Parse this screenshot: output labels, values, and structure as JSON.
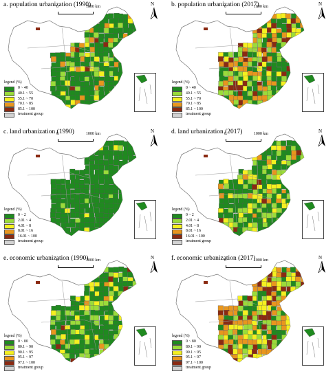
{
  "panels": [
    {
      "title": "a. population urbanization (1990)",
      "legend_key": "pop",
      "colors": {
        "dark": 0.68,
        "light": 0.1,
        "yellow": 0.08,
        "orange": 0.1,
        "brown": 0.04
      }
    },
    {
      "title": "b. population urbanization (2017)",
      "legend_key": "pop",
      "colors": {
        "dark": 0.3,
        "light": 0.18,
        "yellow": 0.14,
        "orange": 0.24,
        "brown": 0.14
      }
    },
    {
      "title": "c. land urbanization (1990)",
      "legend_key": "land",
      "colors": {
        "dark": 0.95,
        "light": 0.03,
        "yellow": 0.02,
        "orange": 0,
        "brown": 0
      }
    },
    {
      "title": "d. land urbanization (2017)",
      "legend_key": "land",
      "colors": {
        "dark": 0.55,
        "light": 0.2,
        "yellow": 0.13,
        "orange": 0.09,
        "brown": 0.03
      }
    },
    {
      "title": "e. economic urbanization (1990)",
      "legend_key": "econ",
      "colors": {
        "dark": 0.62,
        "light": 0.22,
        "yellow": 0.1,
        "orange": 0.04,
        "brown": 0.02
      }
    },
    {
      "title": "f. economic urbanization (2017)",
      "legend_key": "econ",
      "colors": {
        "dark": 0.2,
        "light": 0.18,
        "yellow": 0.18,
        "orange": 0.22,
        "brown": 0.22
      }
    }
  ],
  "legends": {
    "pop": {
      "title": "legend (%)",
      "items": [
        "0 ~ 40",
        "40.1 ~ 55",
        "55.1 ~ 70",
        "70.1 ~ 85",
        "85.1 ~ 100",
        "treatment group"
      ]
    },
    "land": {
      "title": "legend (%)",
      "items": [
        "0 ~ 2",
        "2.01 ~ 4",
        "4.01 ~ 8",
        "8.01 ~ 16",
        "16.01 ~ 100",
        "treatment group"
      ]
    },
    "econ": {
      "title": "legend (%)",
      "items": [
        "0 ~ 80",
        "80.1 ~ 90",
        "90.1 ~ 95",
        "95.1 ~ 97",
        "97.1 ~ 100",
        "treatment group"
      ]
    }
  },
  "legend_colors": [
    "#1f8a1f",
    "#9bdc3a",
    "#f5f020",
    "#e8961e",
    "#8a2a12",
    "#d2d2d2"
  ],
  "scale": {
    "left": "0",
    "right": "1000 km"
  },
  "north_label": "N"
}
